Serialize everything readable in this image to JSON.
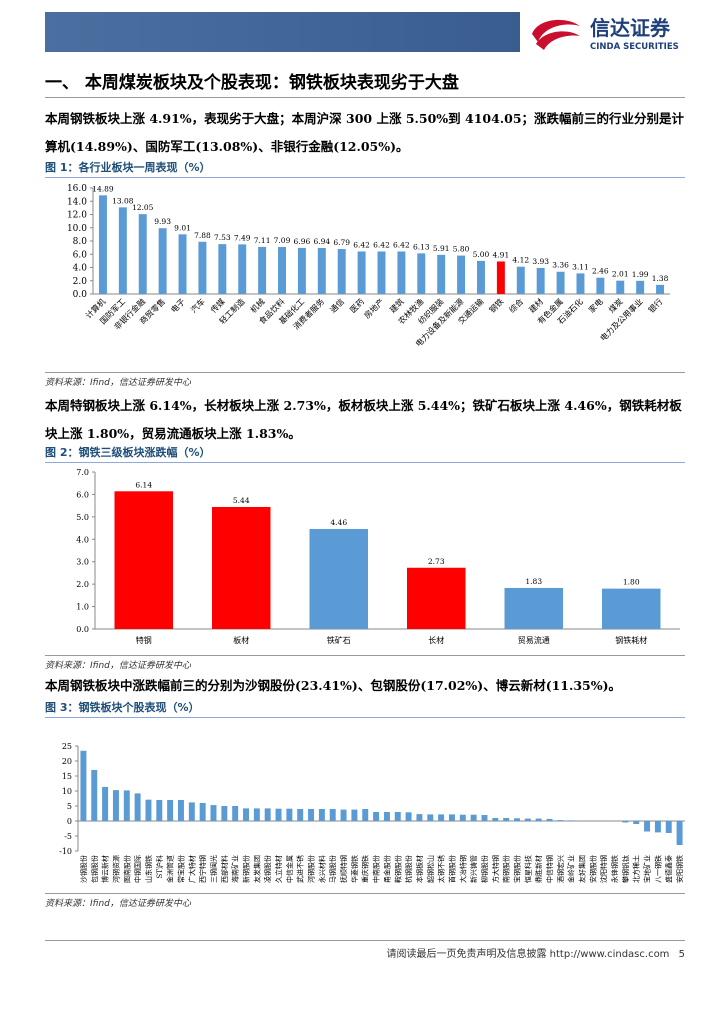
{
  "header": {
    "logo_name": "信达证券",
    "logo_english": "CINDA SECURITIES"
  },
  "section_title": "一、 本周煤炭板块及个股表现：钢铁板块表现劣于大盘",
  "paragraphs": [
    "本周钢铁板块上涨 4.91%，表现劣于大盘；本周沪深 300 上涨 5.50%到 4104.05；涨跌幅前三的行业分别是计算机(14.89%)、国防军工(13.08%)、非银行金融(12.05%)。",
    "本周特钢板块上涨 6.14%，长材板块上涨 2.73%，板材板块上涨 5.44%；铁矿石板块上涨 4.46%，钢铁耗材板块上涨 1.80%，贸易流通板块上涨 1.83%。",
    "本周钢铁板块中涨跌幅前三的分别为沙钢股份(23.41%)、包钢股份(17.02%)、博云新材(11.35%)。"
  ],
  "figures": [
    {
      "title": "图 1：各行业板块一周表现（%）",
      "source": "资料来源：Ifind，信达证券研发中心",
      "chart": {
        "type": "bar",
        "categories": [
          "计算机",
          "国防军工",
          "非银行金融",
          "商贸零售",
          "电子",
          "汽车",
          "传媒",
          "轻工制造",
          "机械",
          "食品饮料",
          "基础化工",
          "消费者服务",
          "通信",
          "医药",
          "房地产",
          "建筑",
          "农林牧渔",
          "纺织服装",
          "电力设备及新能源",
          "交通运输",
          "钢铁",
          "综合",
          "建材",
          "有色金属",
          "石油石化",
          "家电",
          "煤炭",
          "电力及公用事业",
          "银行"
        ],
        "values": [
          14.89,
          13.08,
          12.05,
          9.93,
          9.01,
          7.88,
          7.53,
          7.49,
          7.11,
          7.09,
          6.96,
          6.94,
          6.79,
          6.42,
          6.42,
          6.42,
          6.13,
          5.91,
          5.8,
          5.0,
          4.91,
          4.12,
          3.93,
          3.36,
          3.11,
          2.46,
          2.01,
          1.99,
          1.38
        ],
        "value_labels": [
          "14.89",
          "13.08",
          "12.05",
          "9.93",
          "9.01",
          "7.88",
          "7.53",
          "7.49",
          "7.11",
          "7.09",
          "6.96",
          "6.94",
          "6.79",
          "6.42",
          "6.42",
          "6.42",
          "6.13",
          "5.91",
          "5.80",
          "5.00",
          "4.91",
          "4.12",
          "3.93",
          "3.36",
          "3.11",
          "2.46",
          "2.01",
          "1.99",
          "1.38"
        ],
        "colors": [
          "#5b9bd5",
          "#5b9bd5",
          "#5b9bd5",
          "#5b9bd5",
          "#5b9bd5",
          "#5b9bd5",
          "#5b9bd5",
          "#5b9bd5",
          "#5b9bd5",
          "#5b9bd5",
          "#5b9bd5",
          "#5b9bd5",
          "#5b9bd5",
          "#5b9bd5",
          "#5b9bd5",
          "#5b9bd5",
          "#5b9bd5",
          "#5b9bd5",
          "#5b9bd5",
          "#5b9bd5",
          "#ff0000",
          "#5b9bd5",
          "#5b9bd5",
          "#5b9bd5",
          "#5b9bd5",
          "#5b9bd5",
          "#5b9bd5",
          "#5b9bd5",
          "#5b9bd5"
        ],
        "ylim": [
          0,
          16
        ],
        "yticks": [
          {
            "value": 0,
            "label": "0.0"
          },
          {
            "value": 2,
            "label": "2.0"
          },
          {
            "value": 4,
            "label": "4.0"
          },
          {
            "value": 6,
            "label": "6.0"
          },
          {
            "value": 8,
            "label": "8.0"
          },
          {
            "value": 10,
            "label": "10.0"
          },
          {
            "value": 12,
            "label": "12.0"
          },
          {
            "value": 14,
            "label": "14.0"
          },
          {
            "value": 16,
            "label": "16.0"
          }
        ]
      }
    },
    {
      "title": "图 2：钢铁三级板块涨跌幅（%）",
      "source": "资料来源：Ifind，信达证券研发中心",
      "chart": {
        "type": "bar",
        "categories": [
          "特钢",
          "板材",
          "铁矿石",
          "长材",
          "贸易流通",
          "钢铁耗材"
        ],
        "values": [
          6.14,
          5.44,
          4.46,
          2.73,
          1.83,
          1.8
        ],
        "value_labels": [
          "6.14",
          "5.44",
          "4.46",
          "2.73",
          "1.83",
          "1.80"
        ],
        "colors": [
          "#ff0000",
          "#ff0000",
          "#5b9bd5",
          "#ff0000",
          "#5b9bd5",
          "#5b9bd5"
        ],
        "ylim": [
          0,
          7
        ],
        "yticks": [
          {
            "value": 0,
            "label": "0.0"
          },
          {
            "value": 1,
            "label": "1.0"
          },
          {
            "value": 2,
            "label": "2.0"
          },
          {
            "value": 3,
            "label": "3.0"
          },
          {
            "value": 4,
            "label": "4.0"
          },
          {
            "value": 5,
            "label": "5.0"
          },
          {
            "value": 6,
            "label": "6.0"
          },
          {
            "value": 7,
            "label": "7.0"
          }
        ]
      }
    },
    {
      "title": "图 3：钢铁板块个股表现（%）",
      "source": "资料来源：Ifind，信达证券研发中心",
      "chart": {
        "type": "bar",
        "categories": [
          "沙钢股份",
          "包钢股份",
          "博云新材",
          "河钢资源",
          "图南股份",
          "中钢国际",
          "山东钢铁",
          "ST沪科",
          "金洲管道",
          "常宝股份",
          "广大特材",
          "西宁特钢",
          "三钢闽光",
          "西部材料",
          "海南矿业",
          "新钢股份",
          "友发集团",
          "凌钢股份",
          "久立特材",
          "中信金属",
          "武进不锈",
          "河钢股份",
          "永兴材料",
          "马钢股份",
          "抚顺特钢",
          "华菱钢铁",
          "重庆钢铁",
          "中南股份",
          "甬金股份",
          "鞍钢股份",
          "杭钢股份",
          "本钢板材",
          "韶钢松山",
          "太钢不锈",
          "首钢股份",
          "大冶特钢",
          "新兴铸管",
          "柳钢股份",
          "方大特钢",
          "南钢股份",
          "宝钢股份",
          "恒星科技",
          "鼎胜新材",
          "中信特钢",
          "酒钢宏兴",
          "金岭矿业",
          "友好集团",
          "安钢股份",
          "沈阳特钢",
          "永锋钢铁",
          "攀钢钒钛",
          "北方稀土",
          "宝地矿业",
          "八一钢铁",
          "盛德鑫泰",
          "安阳钢铁"
        ],
        "values": [
          23.41,
          17.02,
          11.35,
          10.3,
          10.2,
          9.2,
          7.1,
          7.0,
          7.0,
          7.0,
          6.2,
          6.0,
          5.3,
          5.0,
          5.0,
          4.2,
          4.2,
          4.2,
          4.1,
          4.1,
          4.0,
          4.0,
          4.0,
          4.0,
          3.8,
          3.8,
          4.0,
          3.0,
          3.0,
          3.0,
          2.9,
          2.3,
          2.2,
          2.2,
          2.2,
          2.1,
          2.1,
          2.0,
          1.0,
          1.0,
          0.9,
          0.8,
          0.8,
          0.7,
          0.3,
          0.2,
          0.1,
          0.1,
          0.0,
          0.0,
          -0.5,
          -1.0,
          -3.5,
          -3.8,
          -4.0,
          -8.0
        ],
        "color": "#5b9bd5",
        "ylim": [
          -10,
          25
        ],
        "yticks": [
          -10,
          -5,
          0,
          5,
          10,
          15,
          20,
          25
        ]
      }
    }
  ],
  "footer": {
    "text": "请阅读最后一页免责声明及信息披露 http://www.cindasc.com",
    "page": "5"
  }
}
